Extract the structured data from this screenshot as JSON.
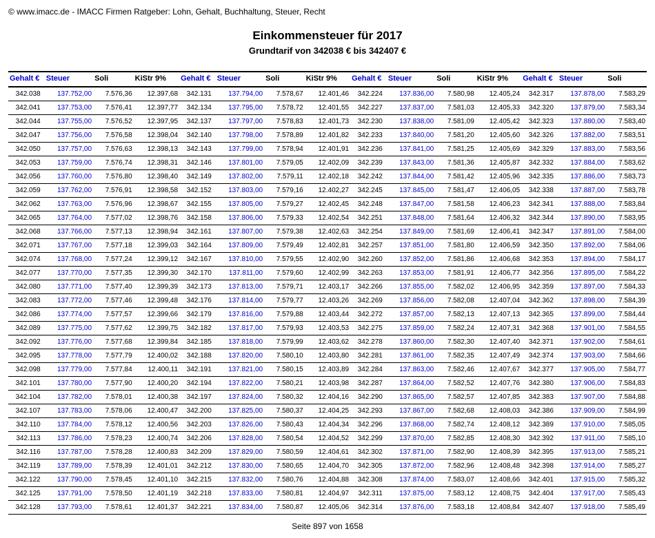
{
  "copyright": "© www.imacc.de - IMACC Firmen Ratgeber: Lohn, Gehalt, Buchhaltung, Steuer, Recht",
  "title": "Einkommensteuer für 2017",
  "subtitle": "Grundtarif von 342038 € bis 342407 €",
  "footer": "Seite 897 von 1658",
  "headers": {
    "gehalt": "Gehalt €",
    "steuer": "Steuer",
    "soli": "Soli",
    "kistr": "KiStr 9%"
  },
  "colors": {
    "link_blue": "#0000cc",
    "text": "#000000",
    "background": "#ffffff",
    "rule": "#000000"
  },
  "typography": {
    "body_font": "Arial",
    "title_fontsize_pt": 13,
    "subtitle_fontsize_pt": 10,
    "table_fontsize_pt": 8
  },
  "rows": [
    {
      "g1": "342.038",
      "s1": "137.752,00",
      "o1": "7.576,36",
      "k1": "12.397,68",
      "g2": "342.131",
      "s2": "137.794,00",
      "o2": "7.578,67",
      "k2": "12.401,46",
      "g3": "342.224",
      "s3": "137.836,00",
      "o3": "7.580,98",
      "k3": "12.405,24",
      "g4": "342.317",
      "s4": "137.878,00",
      "o4": "7.583,29"
    },
    {
      "g1": "342.041",
      "s1": "137.753,00",
      "o1": "7.576,41",
      "k1": "12.397,77",
      "g2": "342.134",
      "s2": "137.795,00",
      "o2": "7.578,72",
      "k2": "12.401,55",
      "g3": "342.227",
      "s3": "137.837,00",
      "o3": "7.581,03",
      "k3": "12.405,33",
      "g4": "342.320",
      "s4": "137.879,00",
      "o4": "7.583,34"
    },
    {
      "g1": "342.044",
      "s1": "137.755,00",
      "o1": "7.576,52",
      "k1": "12.397,95",
      "g2": "342.137",
      "s2": "137.797,00",
      "o2": "7.578,83",
      "k2": "12.401,73",
      "g3": "342.230",
      "s3": "137.838,00",
      "o3": "7.581,09",
      "k3": "12.405,42",
      "g4": "342.323",
      "s4": "137.880,00",
      "o4": "7.583,40"
    },
    {
      "g1": "342.047",
      "s1": "137.756,00",
      "o1": "7.576,58",
      "k1": "12.398,04",
      "g2": "342.140",
      "s2": "137.798,00",
      "o2": "7.578,89",
      "k2": "12.401,82",
      "g3": "342.233",
      "s3": "137.840,00",
      "o3": "7.581,20",
      "k3": "12.405,60",
      "g4": "342.326",
      "s4": "137.882,00",
      "o4": "7.583,51"
    },
    {
      "g1": "342.050",
      "s1": "137.757,00",
      "o1": "7.576,63",
      "k1": "12.398,13",
      "g2": "342.143",
      "s2": "137.799,00",
      "o2": "7.578,94",
      "k2": "12.401,91",
      "g3": "342.236",
      "s3": "137.841,00",
      "o3": "7.581,25",
      "k3": "12.405,69",
      "g4": "342.329",
      "s4": "137.883,00",
      "o4": "7.583,56"
    },
    {
      "g1": "342.053",
      "s1": "137.759,00",
      "o1": "7.576,74",
      "k1": "12.398,31",
      "g2": "342.146",
      "s2": "137.801,00",
      "o2": "7.579,05",
      "k2": "12.402,09",
      "g3": "342.239",
      "s3": "137.843,00",
      "o3": "7.581,36",
      "k3": "12.405,87",
      "g4": "342.332",
      "s4": "137.884,00",
      "o4": "7.583,62"
    },
    {
      "g1": "342.056",
      "s1": "137.760,00",
      "o1": "7.576,80",
      "k1": "12.398,40",
      "g2": "342.149",
      "s2": "137.802,00",
      "o2": "7.579,11",
      "k2": "12.402,18",
      "g3": "342.242",
      "s3": "137.844,00",
      "o3": "7.581,42",
      "k3": "12.405,96",
      "g4": "342.335",
      "s4": "137.886,00",
      "o4": "7.583,73"
    },
    {
      "g1": "342.059",
      "s1": "137.762,00",
      "o1": "7.576,91",
      "k1": "12.398,58",
      "g2": "342.152",
      "s2": "137.803,00",
      "o2": "7.579,16",
      "k2": "12.402,27",
      "g3": "342.245",
      "s3": "137.845,00",
      "o3": "7.581,47",
      "k3": "12.406,05",
      "g4": "342.338",
      "s4": "137.887,00",
      "o4": "7.583,78"
    },
    {
      "g1": "342.062",
      "s1": "137.763,00",
      "o1": "7.576,96",
      "k1": "12.398,67",
      "g2": "342.155",
      "s2": "137.805,00",
      "o2": "7.579,27",
      "k2": "12.402,45",
      "g3": "342.248",
      "s3": "137.847,00",
      "o3": "7.581,58",
      "k3": "12.406,23",
      "g4": "342.341",
      "s4": "137.888,00",
      "o4": "7.583,84"
    },
    {
      "g1": "342.065",
      "s1": "137.764,00",
      "o1": "7.577,02",
      "k1": "12.398,76",
      "g2": "342.158",
      "s2": "137.806,00",
      "o2": "7.579,33",
      "k2": "12.402,54",
      "g3": "342.251",
      "s3": "137.848,00",
      "o3": "7.581,64",
      "k3": "12.406,32",
      "g4": "342.344",
      "s4": "137.890,00",
      "o4": "7.583,95"
    },
    {
      "g1": "342.068",
      "s1": "137.766,00",
      "o1": "7.577,13",
      "k1": "12.398,94",
      "g2": "342.161",
      "s2": "137.807,00",
      "o2": "7.579,38",
      "k2": "12.402,63",
      "g3": "342.254",
      "s3": "137.849,00",
      "o3": "7.581,69",
      "k3": "12.406,41",
      "g4": "342.347",
      "s4": "137.891,00",
      "o4": "7.584,00"
    },
    {
      "g1": "342.071",
      "s1": "137.767,00",
      "o1": "7.577,18",
      "k1": "12.399,03",
      "g2": "342.164",
      "s2": "137.809,00",
      "o2": "7.579,49",
      "k2": "12.402,81",
      "g3": "342.257",
      "s3": "137.851,00",
      "o3": "7.581,80",
      "k3": "12.406,59",
      "g4": "342.350",
      "s4": "137.892,00",
      "o4": "7.584,06"
    },
    {
      "g1": "342.074",
      "s1": "137.768,00",
      "o1": "7.577,24",
      "k1": "12.399,12",
      "g2": "342.167",
      "s2": "137.810,00",
      "o2": "7.579,55",
      "k2": "12.402,90",
      "g3": "342.260",
      "s3": "137.852,00",
      "o3": "7.581,86",
      "k3": "12.406,68",
      "g4": "342.353",
      "s4": "137.894,00",
      "o4": "7.584,17"
    },
    {
      "g1": "342.077",
      "s1": "137.770,00",
      "o1": "7.577,35",
      "k1": "12.399,30",
      "g2": "342.170",
      "s2": "137.811,00",
      "o2": "7.579,60",
      "k2": "12.402,99",
      "g3": "342.263",
      "s3": "137.853,00",
      "o3": "7.581,91",
      "k3": "12.406,77",
      "g4": "342.356",
      "s4": "137.895,00",
      "o4": "7.584,22"
    },
    {
      "g1": "342.080",
      "s1": "137.771,00",
      "o1": "7.577,40",
      "k1": "12.399,39",
      "g2": "342.173",
      "s2": "137.813,00",
      "o2": "7.579,71",
      "k2": "12.403,17",
      "g3": "342.266",
      "s3": "137.855,00",
      "o3": "7.582,02",
      "k3": "12.406,95",
      "g4": "342.359",
      "s4": "137.897,00",
      "o4": "7.584,33"
    },
    {
      "g1": "342.083",
      "s1": "137.772,00",
      "o1": "7.577,46",
      "k1": "12.399,48",
      "g2": "342.176",
      "s2": "137.814,00",
      "o2": "7.579,77",
      "k2": "12.403,26",
      "g3": "342.269",
      "s3": "137.856,00",
      "o3": "7.582,08",
      "k3": "12.407,04",
      "g4": "342.362",
      "s4": "137.898,00",
      "o4": "7.584,39"
    },
    {
      "g1": "342.086",
      "s1": "137.774,00",
      "o1": "7.577,57",
      "k1": "12.399,66",
      "g2": "342.179",
      "s2": "137.816,00",
      "o2": "7.579,88",
      "k2": "12.403,44",
      "g3": "342.272",
      "s3": "137.857,00",
      "o3": "7.582,13",
      "k3": "12.407,13",
      "g4": "342.365",
      "s4": "137.899,00",
      "o4": "7.584,44"
    },
    {
      "g1": "342.089",
      "s1": "137.775,00",
      "o1": "7.577,62",
      "k1": "12.399,75",
      "g2": "342.182",
      "s2": "137.817,00",
      "o2": "7.579,93",
      "k2": "12.403,53",
      "g3": "342.275",
      "s3": "137.859,00",
      "o3": "7.582,24",
      "k3": "12.407,31",
      "g4": "342.368",
      "s4": "137.901,00",
      "o4": "7.584,55"
    },
    {
      "g1": "342.092",
      "s1": "137.776,00",
      "o1": "7.577,68",
      "k1": "12.399,84",
      "g2": "342.185",
      "s2": "137.818,00",
      "o2": "7.579,99",
      "k2": "12.403,62",
      "g3": "342.278",
      "s3": "137.860,00",
      "o3": "7.582,30",
      "k3": "12.407,40",
      "g4": "342.371",
      "s4": "137.902,00",
      "o4": "7.584,61"
    },
    {
      "g1": "342.095",
      "s1": "137.778,00",
      "o1": "7.577,79",
      "k1": "12.400,02",
      "g2": "342.188",
      "s2": "137.820,00",
      "o2": "7.580,10",
      "k2": "12.403,80",
      "g3": "342.281",
      "s3": "137.861,00",
      "o3": "7.582,35",
      "k3": "12.407,49",
      "g4": "342.374",
      "s4": "137.903,00",
      "o4": "7.584,66"
    },
    {
      "g1": "342.098",
      "s1": "137.779,00",
      "o1": "7.577,84",
      "k1": "12.400,11",
      "g2": "342.191",
      "s2": "137.821,00",
      "o2": "7.580,15",
      "k2": "12.403,89",
      "g3": "342.284",
      "s3": "137.863,00",
      "o3": "7.582,46",
      "k3": "12.407,67",
      "g4": "342.377",
      "s4": "137.905,00",
      "o4": "7.584,77"
    },
    {
      "g1": "342.101",
      "s1": "137.780,00",
      "o1": "7.577,90",
      "k1": "12.400,20",
      "g2": "342.194",
      "s2": "137.822,00",
      "o2": "7.580,21",
      "k2": "12.403,98",
      "g3": "342.287",
      "s3": "137.864,00",
      "o3": "7.582,52",
      "k3": "12.407,76",
      "g4": "342.380",
      "s4": "137.906,00",
      "o4": "7.584,83"
    },
    {
      "g1": "342.104",
      "s1": "137.782,00",
      "o1": "7.578,01",
      "k1": "12.400,38",
      "g2": "342.197",
      "s2": "137.824,00",
      "o2": "7.580,32",
      "k2": "12.404,16",
      "g3": "342.290",
      "s3": "137.865,00",
      "o3": "7.582,57",
      "k3": "12.407,85",
      "g4": "342.383",
      "s4": "137.907,00",
      "o4": "7.584,88"
    },
    {
      "g1": "342.107",
      "s1": "137.783,00",
      "o1": "7.578,06",
      "k1": "12.400,47",
      "g2": "342.200",
      "s2": "137.825,00",
      "o2": "7.580,37",
      "k2": "12.404,25",
      "g3": "342.293",
      "s3": "137.867,00",
      "o3": "7.582,68",
      "k3": "12.408,03",
      "g4": "342.386",
      "s4": "137.909,00",
      "o4": "7.584,99"
    },
    {
      "g1": "342.110",
      "s1": "137.784,00",
      "o1": "7.578,12",
      "k1": "12.400,56",
      "g2": "342.203",
      "s2": "137.826,00",
      "o2": "7.580,43",
      "k2": "12.404,34",
      "g3": "342.296",
      "s3": "137.868,00",
      "o3": "7.582,74",
      "k3": "12.408,12",
      "g4": "342.389",
      "s4": "137.910,00",
      "o4": "7.585,05"
    },
    {
      "g1": "342.113",
      "s1": "137.786,00",
      "o1": "7.578,23",
      "k1": "12.400,74",
      "g2": "342.206",
      "s2": "137.828,00",
      "o2": "7.580,54",
      "k2": "12.404,52",
      "g3": "342.299",
      "s3": "137.870,00",
      "o3": "7.582,85",
      "k3": "12.408,30",
      "g4": "342.392",
      "s4": "137.911,00",
      "o4": "7.585,10"
    },
    {
      "g1": "342.116",
      "s1": "137.787,00",
      "o1": "7.578,28",
      "k1": "12.400,83",
      "g2": "342.209",
      "s2": "137.829,00",
      "o2": "7.580,59",
      "k2": "12.404,61",
      "g3": "342.302",
      "s3": "137.871,00",
      "o3": "7.582,90",
      "k3": "12.408,39",
      "g4": "342.395",
      "s4": "137.913,00",
      "o4": "7.585,21"
    },
    {
      "g1": "342.119",
      "s1": "137.789,00",
      "o1": "7.578,39",
      "k1": "12.401,01",
      "g2": "342.212",
      "s2": "137.830,00",
      "o2": "7.580,65",
      "k2": "12.404,70",
      "g3": "342.305",
      "s3": "137.872,00",
      "o3": "7.582,96",
      "k3": "12.408,48",
      "g4": "342.398",
      "s4": "137.914,00",
      "o4": "7.585,27"
    },
    {
      "g1": "342.122",
      "s1": "137.790,00",
      "o1": "7.578,45",
      "k1": "12.401,10",
      "g2": "342.215",
      "s2": "137.832,00",
      "o2": "7.580,76",
      "k2": "12.404,88",
      "g3": "342.308",
      "s3": "137.874,00",
      "o3": "7.583,07",
      "k3": "12.408,66",
      "g4": "342.401",
      "s4": "137.915,00",
      "o4": "7.585,32"
    },
    {
      "g1": "342.125",
      "s1": "137.791,00",
      "o1": "7.578,50",
      "k1": "12.401,19",
      "g2": "342.218",
      "s2": "137.833,00",
      "o2": "7.580,81",
      "k2": "12.404,97",
      "g3": "342.311",
      "s3": "137.875,00",
      "o3": "7.583,12",
      "k3": "12.408,75",
      "g4": "342.404",
      "s4": "137.917,00",
      "o4": "7.585,43"
    },
    {
      "g1": "342.128",
      "s1": "137.793,00",
      "o1": "7.578,61",
      "k1": "12.401,37",
      "g2": "342.221",
      "s2": "137.834,00",
      "o2": "7.580,87",
      "k2": "12.405,06",
      "g3": "342.314",
      "s3": "137.876,00",
      "o3": "7.583,18",
      "k3": "12.408,84",
      "g4": "342.407",
      "s4": "137.918,00",
      "o4": "7.585,49"
    }
  ]
}
